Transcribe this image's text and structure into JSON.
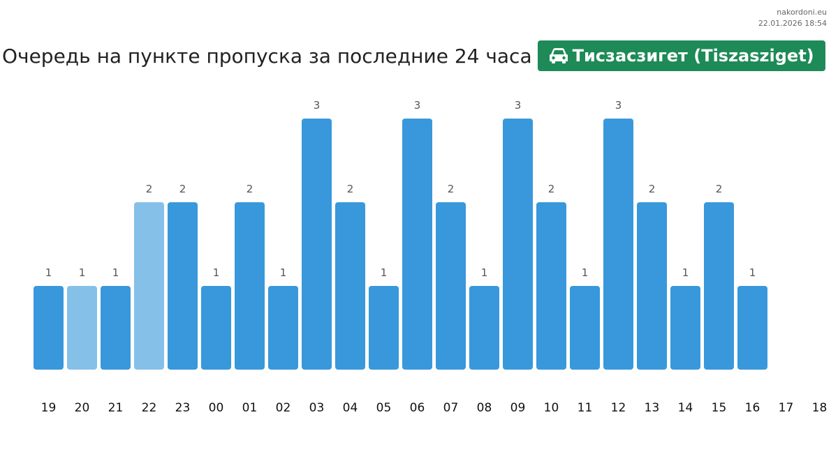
{
  "site": {
    "name": "nakordoni.eu",
    "timestamp": "22.01.2026 18:54"
  },
  "header": {
    "title": "Очередь на пункте пропуска за последние 24 часа",
    "badge_label": "Тисзасзигет (Tiszasziget)",
    "badge_icon": "car-icon",
    "badge_color": "#1e8a57"
  },
  "chart_data": {
    "type": "bar",
    "categories": [
      "19",
      "20",
      "21",
      "22",
      "23",
      "00",
      "01",
      "02",
      "03",
      "04",
      "05",
      "06",
      "07",
      "08",
      "09",
      "10",
      "11",
      "12",
      "13",
      "14",
      "15",
      "16",
      "17",
      "18"
    ],
    "values": [
      1,
      1,
      1,
      2,
      2,
      1,
      2,
      1,
      3,
      2,
      1,
      3,
      2,
      1,
      3,
      2,
      1,
      3,
      2,
      1,
      2,
      1,
      null,
      null
    ],
    "highlighted": [
      false,
      true,
      false,
      true,
      false,
      false,
      false,
      false,
      false,
      false,
      false,
      false,
      false,
      false,
      false,
      false,
      false,
      false,
      false,
      false,
      false,
      false,
      false,
      false
    ],
    "ylim": [
      0,
      3
    ],
    "colors": {
      "bar": "#3898db",
      "bar_light": "#85c0e9",
      "value_label": "#555555",
      "tick_label": "#111111"
    },
    "grid": false,
    "legend": "none"
  }
}
